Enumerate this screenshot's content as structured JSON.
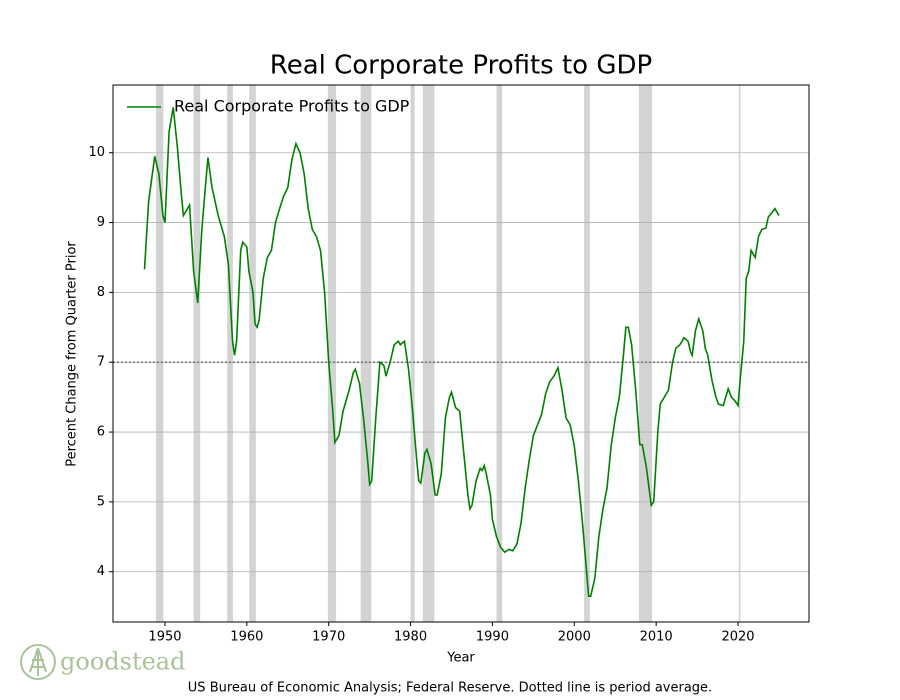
{
  "chart_data": {
    "type": "line",
    "title": "Real Corporate Profits to GDP",
    "x_label": "Year",
    "y_label": "Percent Change from Quarter Prior",
    "footnote": "US Bureau of Economic Analysis; Federal Reserve. Dotted line is period average.",
    "logo": "goodstead",
    "xlim": [
      1943.65,
      2028.67
    ],
    "ylim": [
      3.28,
      10.97
    ],
    "xticks": [
      1950,
      1960,
      1970,
      1980,
      1990,
      2000,
      2010,
      2020
    ],
    "yticks": [
      4,
      5,
      6,
      7,
      8,
      9,
      10
    ],
    "grid": true,
    "legend": "upper left",
    "average": 7.0,
    "average_color": "#808080",
    "recession_color": "#d3d3d3",
    "recessions": [
      [
        1948.9,
        1949.8
      ],
      [
        1953.5,
        1954.3
      ],
      [
        1957.6,
        1958.3
      ],
      [
        1960.3,
        1961.1
      ],
      [
        1969.9,
        1970.9
      ],
      [
        1973.9,
        1975.2
      ],
      [
        1980.0,
        1980.5
      ],
      [
        1981.5,
        1982.9
      ],
      [
        1990.5,
        1991.2
      ],
      [
        2001.2,
        2001.9
      ],
      [
        2007.9,
        2009.5
      ],
      [
        2020.1,
        2020.3
      ]
    ],
    "x": [
      1947.5,
      1948.0,
      1948.75,
      1949.25,
      1949.75,
      1950.0,
      1950.5,
      1951.0,
      1951.5,
      1952.0,
      1952.25,
      1952.75,
      1953.0,
      1953.5,
      1954.0,
      1954.5,
      1955.0,
      1955.25,
      1955.75,
      1956.5,
      1957.25,
      1957.75,
      1958.25,
      1958.5,
      1958.75,
      1959.25,
      1959.5,
      1960.0,
      1960.25,
      1960.75,
      1961.0,
      1961.25,
      1961.5,
      1962.0,
      1962.5,
      1963.0,
      1963.5,
      1964.0,
      1964.5,
      1965.0,
      1965.5,
      1966.0,
      1966.5,
      1967.0,
      1967.5,
      1968.0,
      1968.5,
      1969.0,
      1969.5,
      1970.0,
      1970.5,
      1970.75,
      1971.25,
      1971.75,
      1972.5,
      1973.0,
      1973.25,
      1973.75,
      1974.25,
      1974.75,
      1975.0,
      1975.25,
      1975.75,
      1976.25,
      1976.75,
      1977.0,
      1977.5,
      1978.0,
      1978.5,
      1978.75,
      1979.25,
      1979.75,
      1980.25,
      1980.75,
      1981.0,
      1981.25,
      1981.75,
      1982.0,
      1982.5,
      1983.0,
      1983.25,
      1983.75,
      1984.25,
      1984.75,
      1985.0,
      1985.5,
      1986.0,
      1986.5,
      1987.0,
      1987.25,
      1987.5,
      1988.0,
      1988.5,
      1988.75,
      1989.0,
      1989.25,
      1989.75,
      1990.0,
      1990.5,
      1991.0,
      1991.5,
      1992.0,
      1992.5,
      1993.0,
      1993.5,
      1994.0,
      1994.5,
      1995.0,
      1995.5,
      1996.0,
      1996.5,
      1997.0,
      1997.5,
      1998.0,
      1998.5,
      1999.0,
      1999.5,
      2000.0,
      2000.5,
      2001.0,
      2001.5,
      2001.75,
      2002.0,
      2002.5,
      2003.0,
      2003.5,
      2004.0,
      2004.5,
      2005.0,
      2005.5,
      2006.0,
      2006.3,
      2006.6,
      2007.0,
      2007.5,
      2008.0,
      2008.3,
      2008.8,
      2009.4,
      2009.7,
      2010.2,
      2010.5,
      2011.0,
      2011.5,
      2012.0,
      2012.4,
      2012.9,
      2013.4,
      2013.9,
      2014.2,
      2014.4,
      2014.8,
      2015.2,
      2015.7,
      2016.0,
      2016.3,
      2016.8,
      2017.3,
      2017.6,
      2018.2,
      2018.8,
      2019.2,
      2019.6,
      2020.0,
      2020.3,
      2020.7,
      2021.0,
      2021.3,
      2021.6,
      2022.1,
      2022.5,
      2022.9,
      2023.4,
      2023.7,
      2024.2,
      2024.5,
      2025.0
    ],
    "series": [
      {
        "name": "Real Corporate Profits to GDP",
        "color": "#008000",
        "values": [
          8.33,
          9.3,
          9.95,
          9.7,
          9.1,
          9.0,
          10.3,
          10.65,
          10.1,
          9.4,
          9.1,
          9.2,
          9.25,
          8.3,
          7.85,
          8.9,
          9.6,
          9.93,
          9.5,
          9.1,
          8.8,
          8.4,
          7.3,
          7.1,
          7.3,
          8.6,
          8.72,
          8.65,
          8.3,
          8.0,
          7.55,
          7.5,
          7.6,
          8.2,
          8.5,
          8.6,
          9.0,
          9.2,
          9.38,
          9.5,
          9.9,
          10.13,
          10.0,
          9.7,
          9.2,
          8.9,
          8.8,
          8.6,
          8.0,
          7.0,
          6.3,
          5.85,
          5.95,
          6.3,
          6.6,
          6.85,
          6.9,
          6.7,
          6.2,
          5.6,
          5.25,
          5.3,
          6.2,
          7.0,
          6.95,
          6.8,
          7.0,
          7.25,
          7.3,
          7.25,
          7.3,
          6.9,
          6.3,
          5.6,
          5.3,
          5.27,
          5.7,
          5.75,
          5.55,
          5.1,
          5.1,
          5.4,
          6.2,
          6.5,
          6.57,
          6.35,
          6.3,
          5.7,
          5.1,
          4.9,
          4.95,
          5.3,
          5.48,
          5.45,
          5.52,
          5.4,
          5.1,
          4.75,
          4.5,
          4.35,
          4.28,
          4.32,
          4.3,
          4.4,
          4.7,
          5.2,
          5.6,
          5.95,
          6.1,
          6.25,
          6.55,
          6.72,
          6.8,
          6.92,
          6.6,
          6.2,
          6.1,
          5.8,
          5.3,
          4.7,
          4.0,
          3.65,
          3.65,
          3.9,
          4.5,
          4.9,
          5.2,
          5.8,
          6.2,
          6.5,
          7.1,
          7.5,
          7.5,
          7.25,
          6.6,
          5.82,
          5.82,
          5.5,
          4.95,
          5.0,
          6.0,
          6.4,
          6.5,
          6.6,
          7.0,
          7.2,
          7.25,
          7.35,
          7.3,
          7.15,
          7.1,
          7.45,
          7.62,
          7.45,
          7.2,
          7.1,
          6.75,
          6.5,
          6.4,
          6.38,
          6.62,
          6.5,
          6.45,
          6.38,
          6.8,
          7.3,
          8.2,
          8.3,
          8.6,
          8.5,
          8.8,
          8.9,
          8.92,
          9.08,
          9.15,
          9.2,
          9.1
        ]
      }
    ]
  }
}
